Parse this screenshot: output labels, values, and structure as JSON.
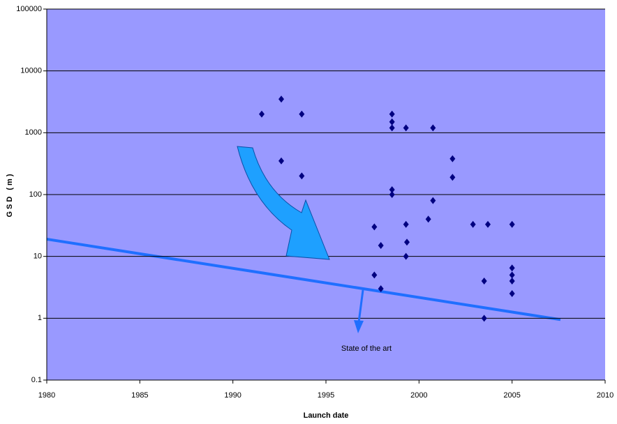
{
  "chart_data": {
    "type": "scatter",
    "xlabel": "Launch date",
    "ylabel": "GSD (m)",
    "xlim": [
      1980,
      2010
    ],
    "xticks": [
      1980,
      1985,
      1990,
      1995,
      2000,
      2005,
      2010
    ],
    "ylim": [
      0.1,
      100000
    ],
    "yticks": [
      0.1,
      1,
      10,
      100,
      1000,
      10000,
      100000
    ],
    "ylog": true,
    "grid": true,
    "background": "#9999ff",
    "series": [
      {
        "color": "#000080",
        "x": [
          1991.55,
          1992.6,
          1992.6,
          1993.7,
          1993.7,
          1998.55,
          1998.55,
          1998.55,
          1999.3,
          2000.75,
          2001.8,
          2001.8,
          1998.55,
          1998.55,
          2000.75,
          2000.5,
          1997.6,
          1999.3,
          2002.9,
          2003.7,
          2005,
          1997.95,
          1999.35,
          1999.3,
          1997.6,
          1997.95,
          2003.5,
          2003.5,
          2005,
          2005,
          2005,
          2005
        ],
        "values": [
          2000,
          3500,
          350,
          2000,
          200,
          2000,
          1500,
          1200,
          1200,
          1200,
          380,
          190,
          120,
          100,
          80,
          40,
          30,
          33,
          33,
          33,
          33,
          15,
          17,
          10,
          5,
          3,
          4,
          1,
          6.5,
          5,
          4,
          2.5
        ]
      },
      {
        "name": "State of the art",
        "type": "line",
        "color": "#1f6fff",
        "x": [
          1980,
          2007.6
        ],
        "values": [
          19,
          0.95
        ]
      }
    ]
  }
}
